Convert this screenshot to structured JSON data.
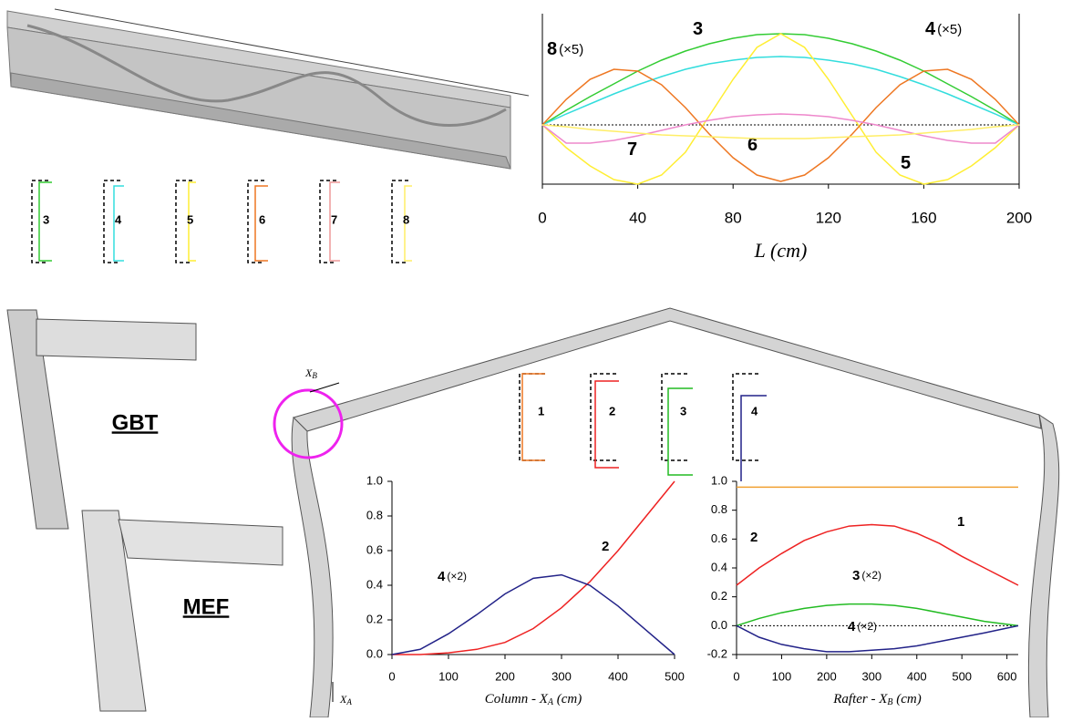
{
  "chart_data": [
    {
      "type": "line",
      "xlabel": "L (cm)",
      "xlim": [
        0,
        200
      ],
      "xticks": [
        0,
        40,
        80,
        120,
        160,
        200
      ],
      "ylim": [
        -0.65,
        1.22
      ],
      "zero_line": true,
      "x": [
        0,
        10,
        20,
        30,
        40,
        50,
        60,
        70,
        80,
        90,
        100,
        110,
        120,
        130,
        140,
        150,
        160,
        170,
        180,
        190,
        200
      ],
      "series": [
        {
          "name": "3",
          "color": "#33cc33",
          "values": [
            0,
            0.16,
            0.31,
            0.45,
            0.59,
            0.71,
            0.81,
            0.89,
            0.95,
            0.99,
            1.0,
            0.99,
            0.95,
            0.89,
            0.81,
            0.71,
            0.59,
            0.45,
            0.31,
            0.16,
            0
          ]
        },
        {
          "name": "4",
          "scale": "(×5)",
          "color": "#33dddd",
          "values": [
            0,
            0.12,
            0.23,
            0.34,
            0.44,
            0.53,
            0.61,
            0.67,
            0.71,
            0.74,
            0.75,
            0.74,
            0.71,
            0.67,
            0.61,
            0.53,
            0.44,
            0.34,
            0.23,
            0.12,
            0
          ]
        },
        {
          "name": "5",
          "color": "#ffee33",
          "values": [
            0,
            -0.25,
            -0.45,
            -0.6,
            -0.65,
            -0.55,
            -0.3,
            0.1,
            0.5,
            0.85,
            1.0,
            0.85,
            0.5,
            0.1,
            -0.3,
            -0.55,
            -0.65,
            -0.6,
            -0.45,
            -0.25,
            0
          ]
        },
        {
          "name": "6",
          "color": "#ee7722",
          "values": [
            0,
            0.28,
            0.5,
            0.61,
            0.59,
            0.44,
            0.19,
            -0.1,
            -0.36,
            -0.55,
            -0.62,
            -0.55,
            -0.36,
            -0.1,
            0.19,
            0.44,
            0.59,
            0.61,
            0.5,
            0.28,
            0
          ]
        },
        {
          "name": "7",
          "color": "#ee88cc",
          "values": [
            0,
            -0.2,
            -0.2,
            -0.17,
            -0.12,
            -0.06,
            0,
            0.05,
            0.09,
            0.11,
            0.12,
            0.11,
            0.09,
            0.05,
            0,
            -0.06,
            -0.12,
            -0.17,
            -0.2,
            -0.2,
            0
          ]
        },
        {
          "name": "8",
          "scale": "(×5)",
          "color": "#ffee66",
          "values": [
            0,
            -0.02,
            -0.05,
            -0.07,
            -0.09,
            -0.11,
            -0.12,
            -0.13,
            -0.14,
            -0.15,
            -0.15,
            -0.15,
            -0.14,
            -0.13,
            -0.12,
            -0.11,
            -0.09,
            -0.07,
            -0.05,
            -0.02,
            0
          ]
        }
      ]
    },
    {
      "type": "line",
      "xlabel": "Column - X",
      "xlabel_sub": "A",
      "xlabel_unit": " (cm)",
      "xlim": [
        0,
        500
      ],
      "xticks": [
        0,
        100,
        200,
        300,
        400,
        500
      ],
      "ylim": [
        0,
        1
      ],
      "yticks": [
        {
          "value": 0,
          "label": "0.0"
        },
        {
          "value": 0.2,
          "label": "0.2"
        },
        {
          "value": 0.4,
          "label": "0.4"
        },
        {
          "value": 0.6,
          "label": "0.6"
        },
        {
          "value": 0.8,
          "label": "0.8"
        },
        {
          "value": 1,
          "label": "1.0"
        }
      ],
      "x": [
        0,
        50,
        100,
        150,
        200,
        250,
        300,
        350,
        400,
        450,
        500
      ],
      "series": [
        {
          "name": "2",
          "color": "#ee2222",
          "values": [
            0,
            0,
            0.01,
            0.03,
            0.07,
            0.15,
            0.27,
            0.42,
            0.6,
            0.8,
            1.0
          ]
        },
        {
          "name": "4",
          "scale": "(×2)",
          "color": "#222288",
          "values": [
            0,
            0.03,
            0.12,
            0.23,
            0.35,
            0.44,
            0.46,
            0.4,
            0.28,
            0.14,
            0
          ]
        }
      ]
    },
    {
      "type": "line",
      "xlabel": "Rafter - X",
      "xlabel_sub": "B",
      "xlabel_unit": " (cm)",
      "xlim": [
        0,
        625
      ],
      "xticks": [
        0,
        100,
        200,
        300,
        400,
        500,
        600
      ],
      "ylim": [
        -0.2,
        1
      ],
      "zero_line": true,
      "yticks": [
        {
          "value": -0.2,
          "label": "-0.2"
        },
        {
          "value": 0,
          "label": "0.0"
        },
        {
          "value": 0.2,
          "label": "0.2"
        },
        {
          "value": 0.4,
          "label": "0.4"
        },
        {
          "value": 0.6,
          "label": "0.6"
        },
        {
          "value": 0.8,
          "label": "0.8"
        },
        {
          "value": 1,
          "label": "1.0"
        }
      ],
      "x": [
        0,
        50,
        100,
        150,
        200,
        250,
        300,
        350,
        400,
        450,
        500,
        550,
        625
      ],
      "series": [
        {
          "name": "1",
          "color": "#f0a030",
          "values": [
            0.96,
            0.96,
            0.96,
            0.96,
            0.96,
            0.96,
            0.96,
            0.96,
            0.96,
            0.96,
            0.96,
            0.96,
            0.96
          ]
        },
        {
          "name": "2",
          "color": "#ee2222",
          "values": [
            0.28,
            0.4,
            0.5,
            0.59,
            0.65,
            0.69,
            0.7,
            0.69,
            0.64,
            0.57,
            0.48,
            0.4,
            0.28
          ]
        },
        {
          "name": "3",
          "scale": "(×2)",
          "color": "#22bb22",
          "values": [
            0,
            0.05,
            0.09,
            0.12,
            0.14,
            0.15,
            0.15,
            0.14,
            0.12,
            0.09,
            0.06,
            0.03,
            0
          ]
        },
        {
          "name": "4",
          "scale": "(×2)",
          "color": "#222288",
          "values": [
            0,
            -0.08,
            -0.13,
            -0.16,
            -0.18,
            -0.18,
            -0.17,
            -0.16,
            -0.14,
            -0.11,
            -0.08,
            -0.05,
            0
          ]
        }
      ]
    }
  ],
  "labels": {
    "gbt": "GBT",
    "mef": "MEF",
    "xb": "X",
    "xb_sub": "B",
    "xa": "X",
    "xa_sub": "A"
  },
  "sections_top": [
    "3",
    "4",
    "5",
    "6",
    "7",
    "8"
  ],
  "sections_bottom": [
    "1",
    "2",
    "3",
    "4"
  ]
}
